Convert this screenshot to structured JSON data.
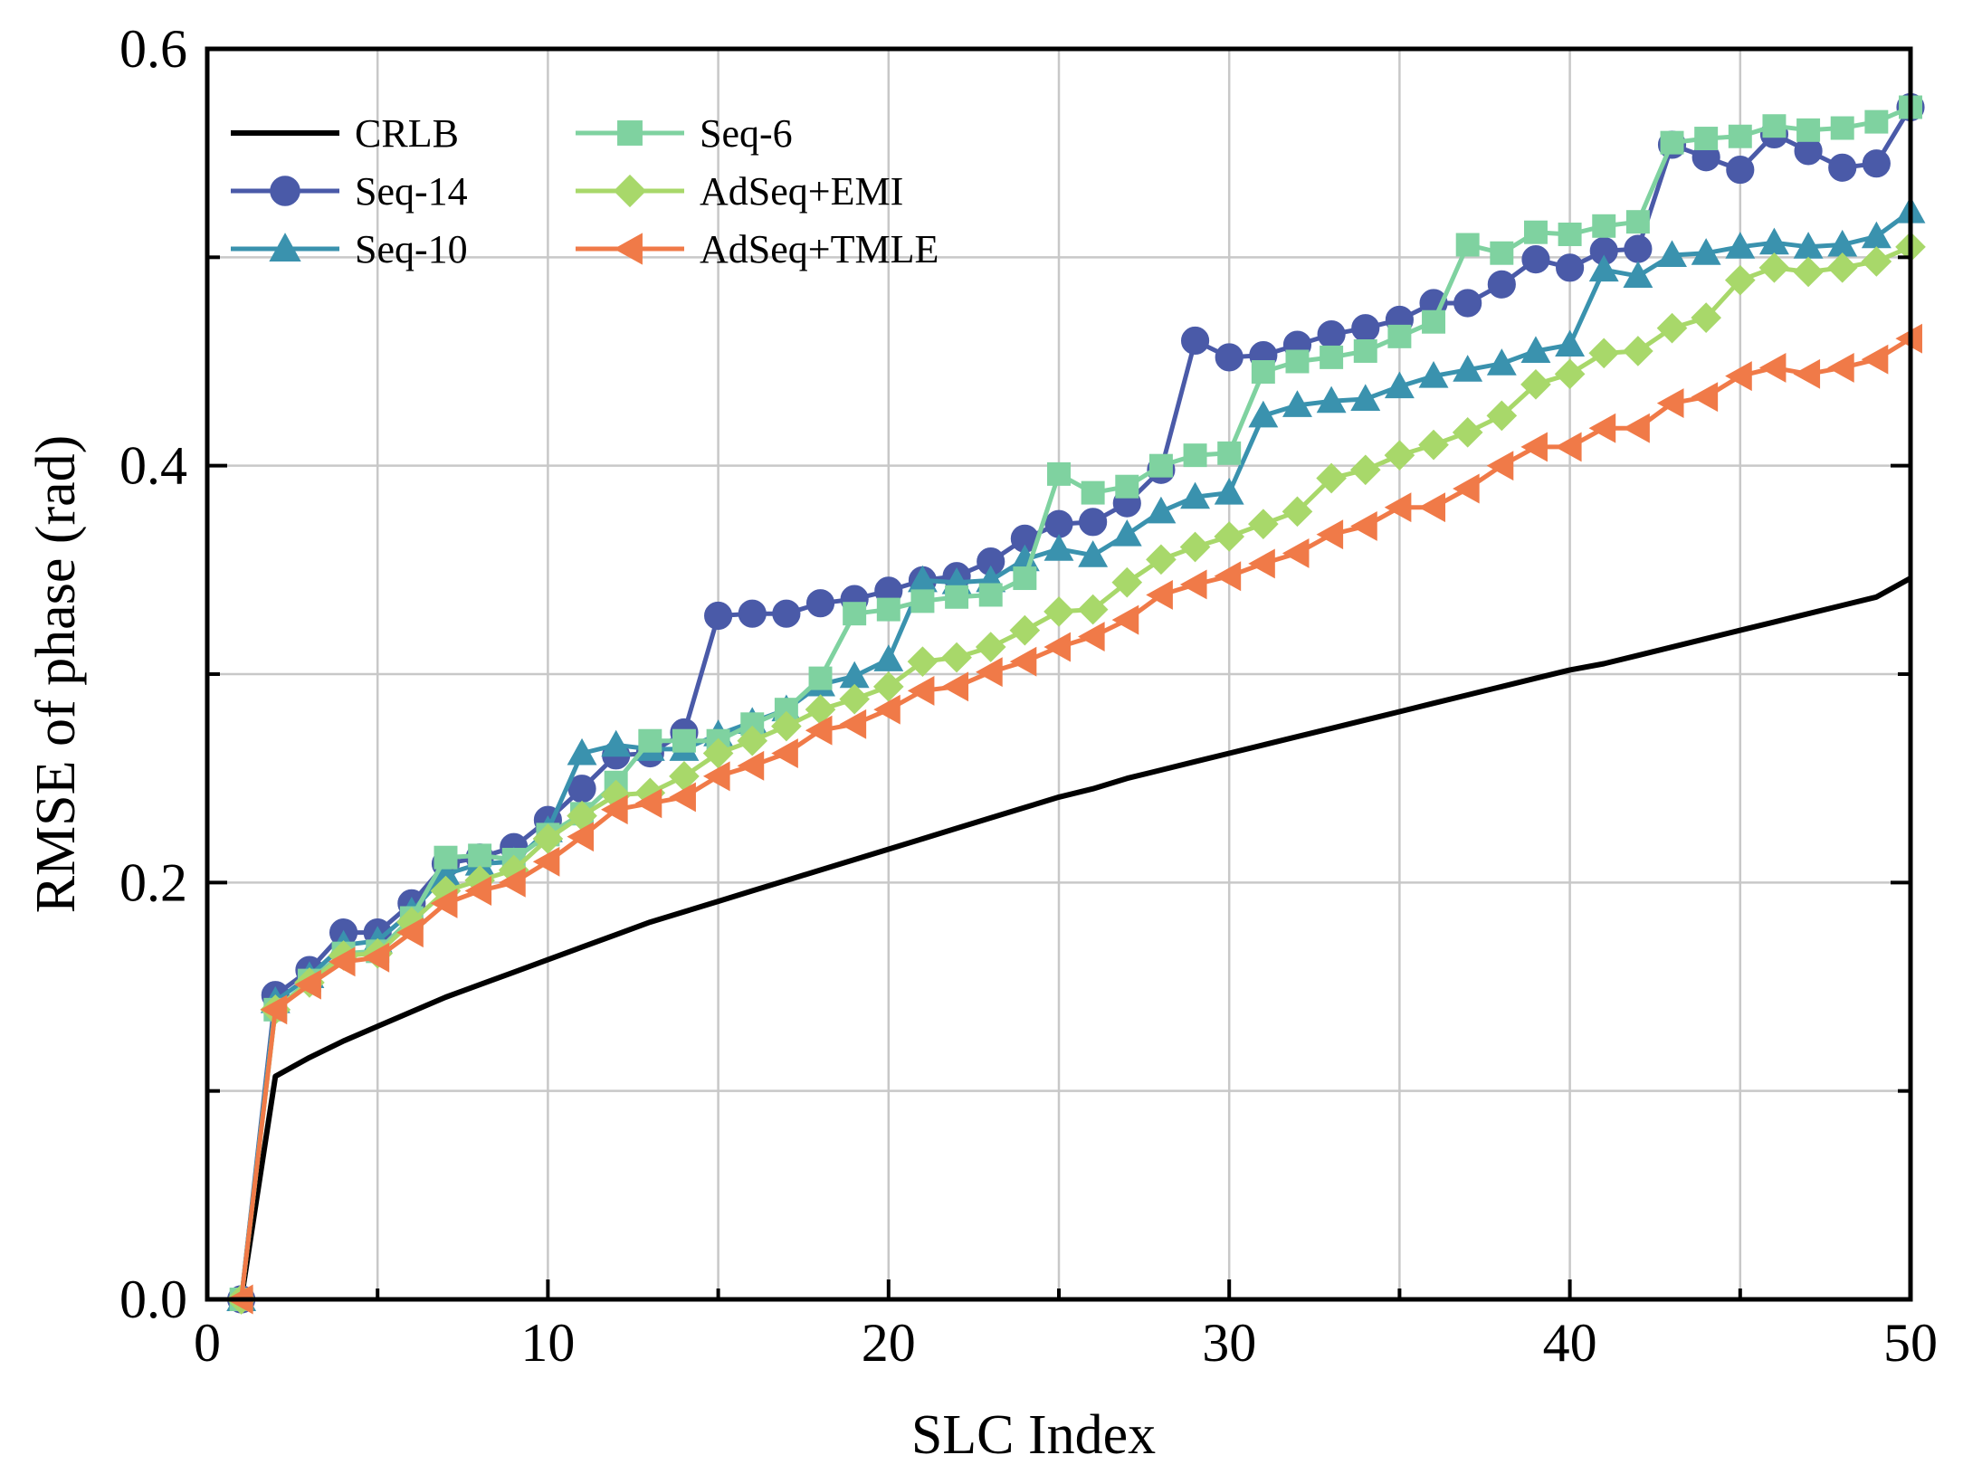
{
  "chart_data": {
    "type": "line",
    "title": "",
    "xlabel": "SLC Index",
    "ylabel": "RMSE of phase (rad)",
    "xlim": [
      0,
      50
    ],
    "ylim": [
      0,
      0.6
    ],
    "xticks": [
      0,
      10,
      20,
      30,
      40,
      50
    ],
    "xtick_labels": [
      "0",
      "10",
      "20",
      "30",
      "40",
      "50"
    ],
    "yticks": [
      0,
      0.2,
      0.4,
      0.6
    ],
    "ytick_labels": [
      "0.0",
      "0.2",
      "0.4",
      "0.6"
    ],
    "minor_yticks": [
      0.1,
      0.3,
      0.5
    ],
    "minor_xticks": [
      5,
      15,
      25,
      35,
      45
    ],
    "grid": true,
    "legend": "top-left, two columns",
    "x": [
      1,
      2,
      3,
      4,
      5,
      6,
      7,
      8,
      9,
      10,
      11,
      12,
      13,
      14,
      15,
      16,
      17,
      18,
      19,
      20,
      21,
      22,
      23,
      24,
      25,
      26,
      27,
      28,
      29,
      30,
      31,
      32,
      33,
      34,
      35,
      36,
      37,
      38,
      39,
      40,
      41,
      42,
      43,
      44,
      45,
      46,
      47,
      48,
      49,
      50
    ],
    "series": [
      {
        "name": "CRLB",
        "color": "#000000",
        "marker": "none",
        "values": [
          0.0,
          0.107,
          0.116,
          0.124,
          0.131,
          0.138,
          0.145,
          0.151,
          0.157,
          0.163,
          0.169,
          0.175,
          0.181,
          0.186,
          0.191,
          0.196,
          0.201,
          0.206,
          0.211,
          0.216,
          0.221,
          0.226,
          0.231,
          0.236,
          0.241,
          0.245,
          0.25,
          0.254,
          0.258,
          0.262,
          0.266,
          0.27,
          0.274,
          0.278,
          0.282,
          0.286,
          0.29,
          0.294,
          0.298,
          0.302,
          0.305,
          0.309,
          0.313,
          0.317,
          0.321,
          0.325,
          0.329,
          0.333,
          0.337,
          0.346
        ]
      },
      {
        "name": "Seq-14",
        "color": "#4a5aa8",
        "marker": "circle",
        "values": [
          0.0,
          0.146,
          0.158,
          0.176,
          0.176,
          0.19,
          0.209,
          0.212,
          0.217,
          0.23,
          0.245,
          0.261,
          0.262,
          0.272,
          0.328,
          0.329,
          0.329,
          0.334,
          0.336,
          0.34,
          0.345,
          0.347,
          0.354,
          0.365,
          0.372,
          0.373,
          0.382,
          0.398,
          0.46,
          0.452,
          0.453,
          0.458,
          0.463,
          0.466,
          0.47,
          0.478,
          0.478,
          0.487,
          0.499,
          0.495,
          0.503,
          0.504,
          0.554,
          0.548,
          0.542,
          0.559,
          0.551,
          0.543,
          0.545,
          0.572
        ]
      },
      {
        "name": "Seq-10",
        "color": "#3a92ae",
        "marker": "triangle",
        "values": [
          0.0,
          0.143,
          0.155,
          0.17,
          0.172,
          0.186,
          0.204,
          0.209,
          0.21,
          0.225,
          0.262,
          0.266,
          0.264,
          0.264,
          0.271,
          0.277,
          0.283,
          0.295,
          0.299,
          0.307,
          0.345,
          0.344,
          0.345,
          0.355,
          0.36,
          0.357,
          0.367,
          0.378,
          0.385,
          0.387,
          0.424,
          0.429,
          0.431,
          0.432,
          0.438,
          0.443,
          0.446,
          0.449,
          0.455,
          0.458,
          0.494,
          0.491,
          0.501,
          0.502,
          0.505,
          0.507,
          0.505,
          0.506,
          0.51,
          0.522
        ]
      },
      {
        "name": "Seq-6",
        "color": "#7fd2a0",
        "marker": "square",
        "values": [
          0.0,
          0.139,
          0.153,
          0.166,
          0.167,
          0.183,
          0.212,
          0.213,
          0.211,
          0.223,
          0.233,
          0.248,
          0.268,
          0.268,
          0.268,
          0.276,
          0.283,
          0.298,
          0.329,
          0.331,
          0.335,
          0.337,
          0.338,
          0.346,
          0.396,
          0.387,
          0.39,
          0.4,
          0.405,
          0.406,
          0.445,
          0.45,
          0.452,
          0.455,
          0.462,
          0.469,
          0.506,
          0.502,
          0.512,
          0.511,
          0.515,
          0.517,
          0.555,
          0.557,
          0.558,
          0.563,
          0.561,
          0.562,
          0.565,
          0.572
        ]
      },
      {
        "name": "AdSeq+EMI",
        "color": "#a8d86a",
        "marker": "diamond",
        "values": [
          0.0,
          0.139,
          0.152,
          0.165,
          0.166,
          0.181,
          0.196,
          0.201,
          0.206,
          0.221,
          0.232,
          0.242,
          0.243,
          0.251,
          0.262,
          0.268,
          0.275,
          0.283,
          0.288,
          0.294,
          0.306,
          0.308,
          0.313,
          0.321,
          0.33,
          0.331,
          0.344,
          0.355,
          0.361,
          0.366,
          0.372,
          0.378,
          0.394,
          0.398,
          0.405,
          0.41,
          0.416,
          0.424,
          0.439,
          0.444,
          0.454,
          0.455,
          0.466,
          0.471,
          0.489,
          0.495,
          0.493,
          0.495,
          0.498,
          0.505
        ]
      },
      {
        "name": "AdSeq+TMLE",
        "color": "#f07a48",
        "marker": "triangle-left",
        "values": [
          0.0,
          0.139,
          0.151,
          0.162,
          0.164,
          0.176,
          0.19,
          0.196,
          0.2,
          0.21,
          0.222,
          0.235,
          0.238,
          0.241,
          0.251,
          0.256,
          0.262,
          0.273,
          0.276,
          0.283,
          0.292,
          0.294,
          0.301,
          0.306,
          0.313,
          0.318,
          0.326,
          0.338,
          0.343,
          0.347,
          0.353,
          0.358,
          0.367,
          0.371,
          0.38,
          0.38,
          0.389,
          0.4,
          0.409,
          0.409,
          0.418,
          0.418,
          0.43,
          0.433,
          0.443,
          0.447,
          0.444,
          0.447,
          0.451,
          0.461
        ]
      }
    ]
  }
}
